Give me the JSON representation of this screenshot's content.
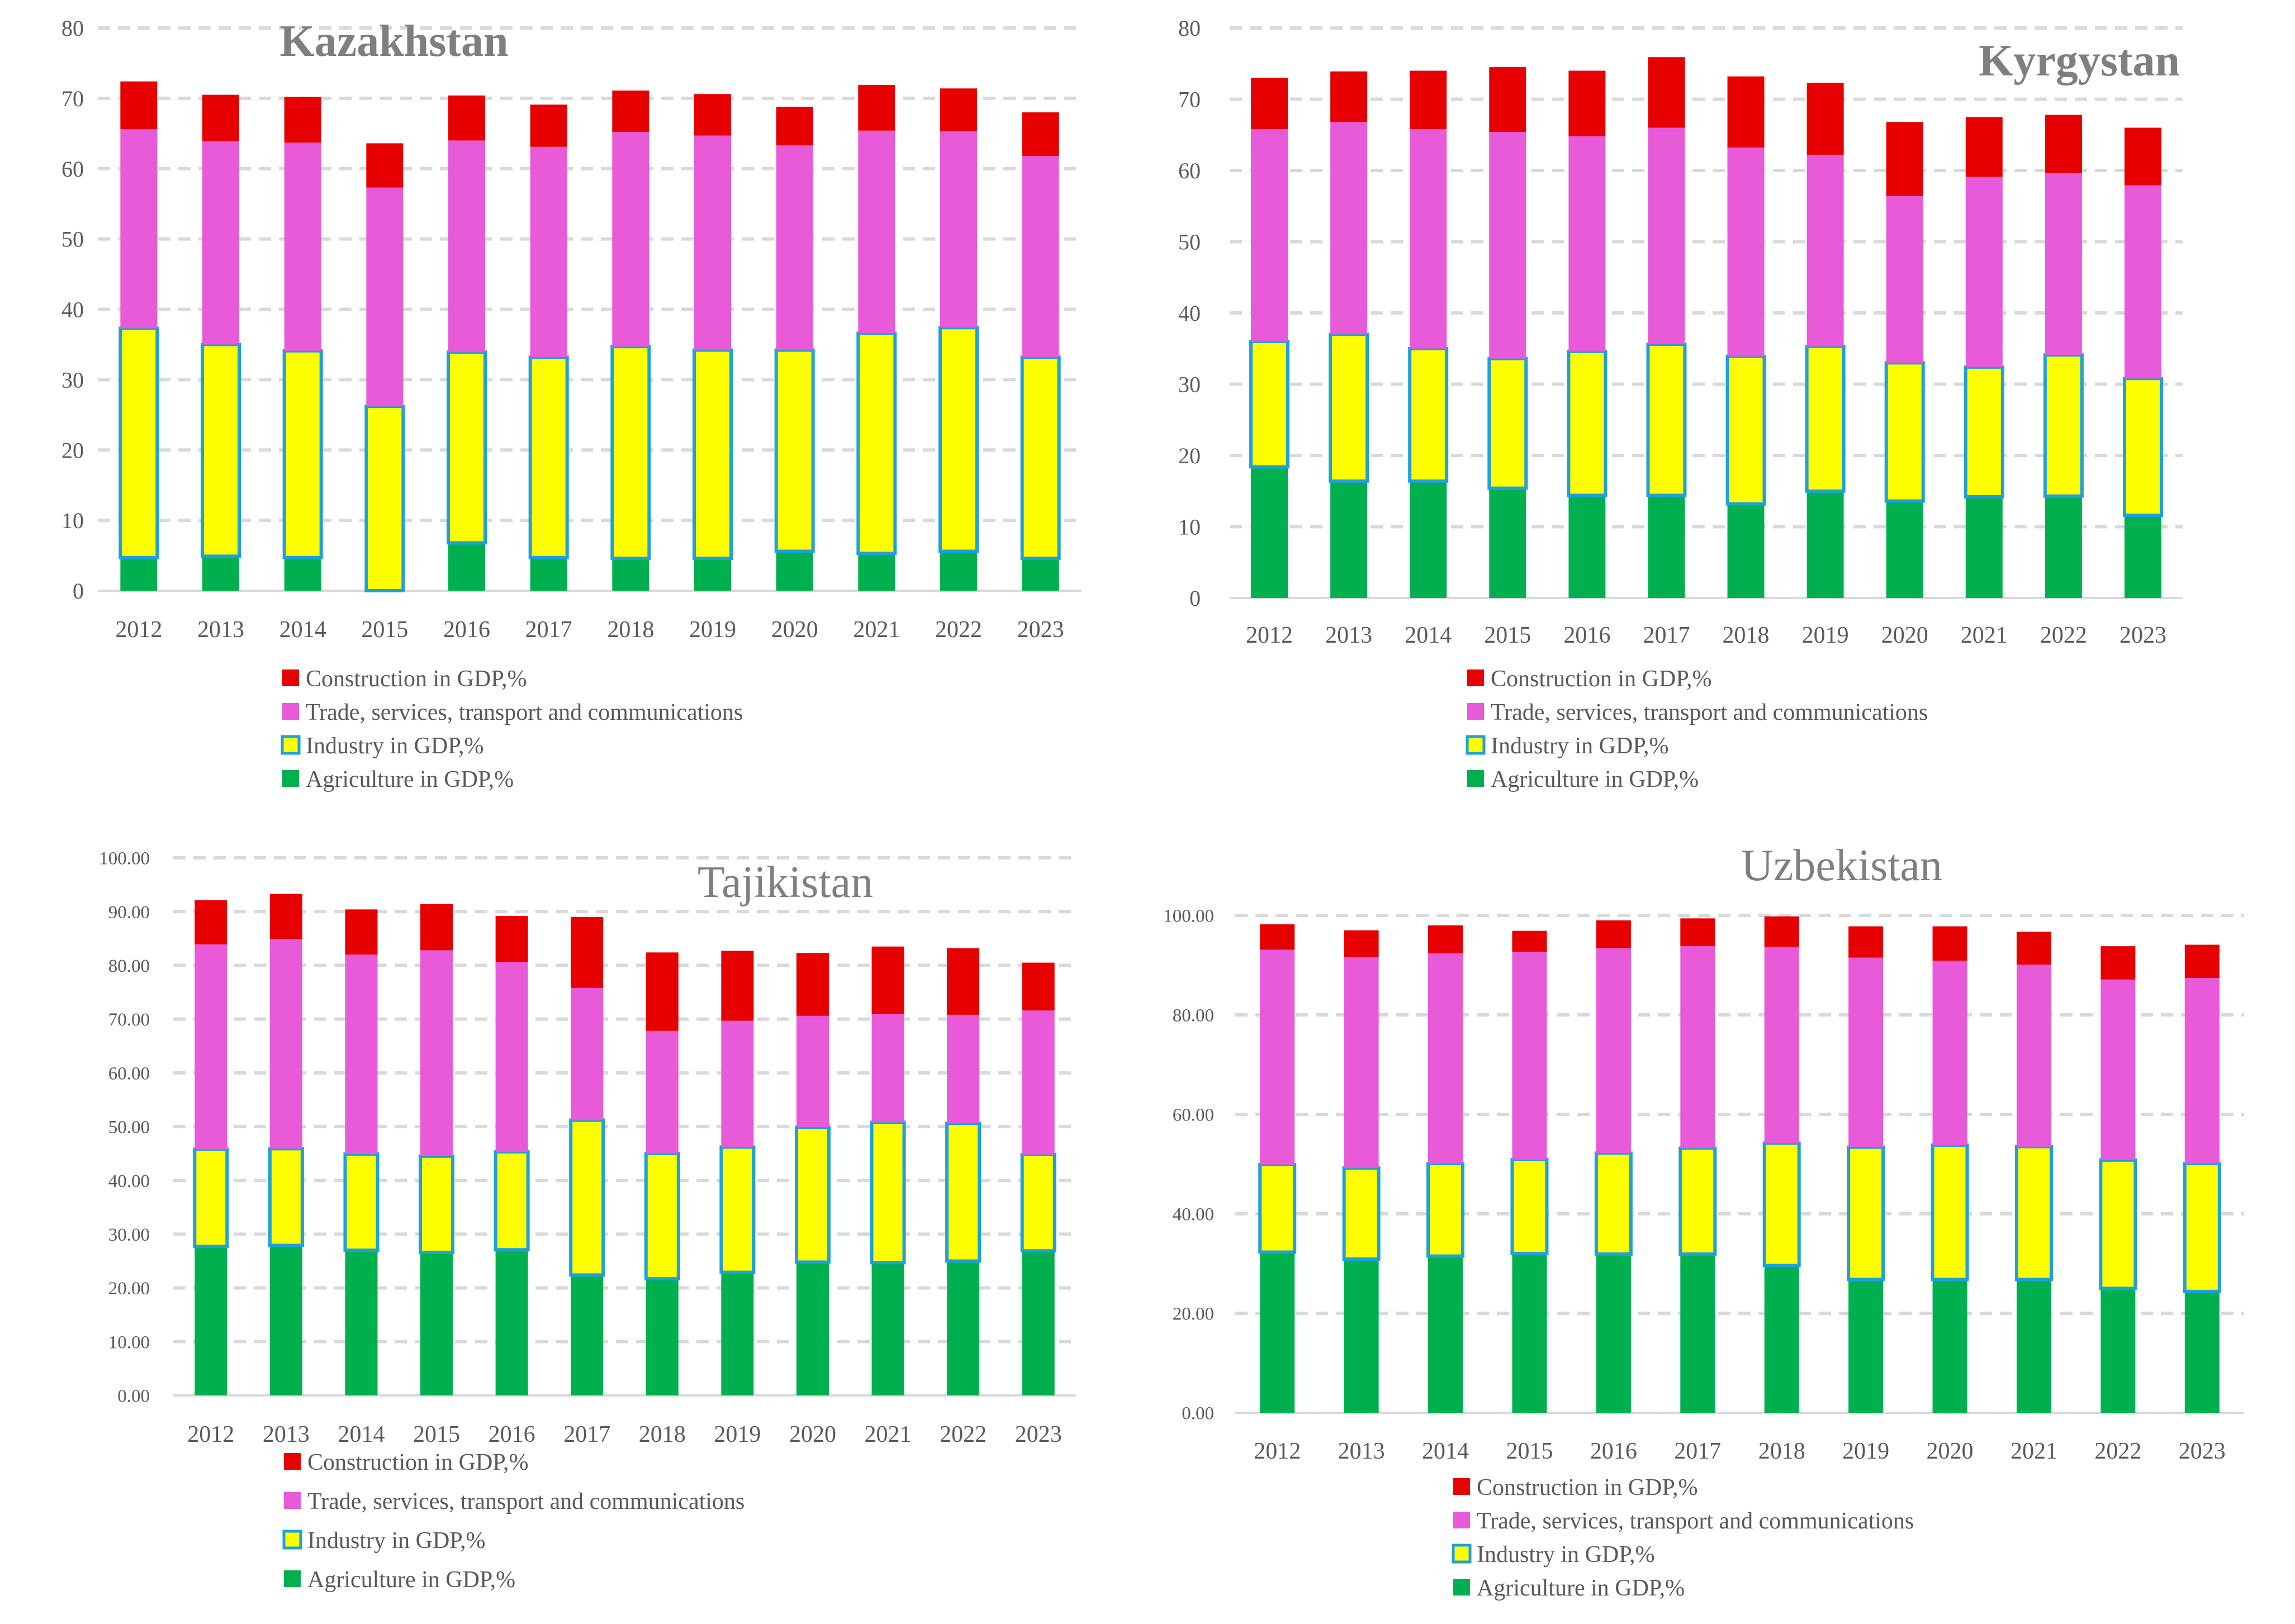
{
  "series_labels": [
    "Agriculture in GDP,%",
    "Industry in GDP,%",
    "Trade, services, transport and communications",
    "Construction in GDP,%"
  ],
  "colors": {
    "agriculture": "#00b04f",
    "industry": "#ffff00",
    "industry_border": "#1ea0dc",
    "trade": "#e95ad9",
    "construction": "#e60000",
    "grid": "#d9d9d9",
    "axis_text": "#595959",
    "title_text": "#7f7f7f"
  },
  "chart_data": [
    {
      "type": "bar",
      "title": "Kazakhstan",
      "categories": [
        "2012",
        "2013",
        "2014",
        "2015",
        "2016",
        "2017",
        "2018",
        "2019",
        "2020",
        "2021",
        "2022",
        "2023"
      ],
      "ylim": [
        0,
        80
      ],
      "yticks": [
        "0",
        "10",
        "20",
        "30",
        "40",
        "50",
        "60",
        "70",
        "80"
      ],
      "series": [
        {
          "name": "Agriculture in GDP,%",
          "values": [
            4.7,
            4.9,
            4.7,
            0,
            6.8,
            4.7,
            4.6,
            4.6,
            5.6,
            5.3,
            5.6,
            4.6
          ]
        },
        {
          "name": "Industry in GDP,%",
          "values": [
            32.6,
            30.1,
            29.4,
            26.2,
            27.1,
            28.5,
            30.1,
            29.6,
            28.6,
            31.3,
            31.8,
            28.6
          ]
        },
        {
          "name": "Trade, services, transport and communications",
          "values": [
            28.3,
            28.9,
            29.6,
            31.1,
            30.1,
            29.9,
            30.5,
            30.5,
            29.1,
            28.8,
            27.9,
            28.6
          ]
        },
        {
          "name": "Construction in GDP,%",
          "values": [
            6.8,
            6.6,
            6.5,
            6.3,
            6.4,
            6.0,
            5.9,
            5.9,
            5.5,
            6.5,
            6.1,
            6.2
          ]
        }
      ]
    },
    {
      "type": "bar",
      "title": "Kyrgystan",
      "categories": [
        "2012",
        "2013",
        "2014",
        "2015",
        "2016",
        "2017",
        "2018",
        "2019",
        "2020",
        "2021",
        "2022",
        "2023"
      ],
      "ylim": [
        0,
        80
      ],
      "yticks": [
        "0",
        "10",
        "20",
        "30",
        "40",
        "50",
        "60",
        "70",
        "80"
      ],
      "series": [
        {
          "name": "Agriculture in GDP,%",
          "values": [
            18.4,
            16.4,
            16.4,
            15.4,
            14.4,
            14.4,
            13.2,
            15.0,
            13.6,
            14.2,
            14.3,
            11.6
          ]
        },
        {
          "name": "Industry in GDP,%",
          "values": [
            17.6,
            20.6,
            18.6,
            18.2,
            20.2,
            21.2,
            20.7,
            20.3,
            19.4,
            18.2,
            19.8,
            19.2
          ]
        },
        {
          "name": "Trade, services, transport and communications",
          "values": [
            29.8,
            29.8,
            30.8,
            31.8,
            30.2,
            30.4,
            29.3,
            26.9,
            23.4,
            26.7,
            25.5,
            27.1
          ]
        },
        {
          "name": "Construction in GDP,%",
          "values": [
            7.2,
            7.1,
            8.2,
            9.1,
            9.2,
            9.9,
            10.0,
            10.1,
            10.4,
            8.4,
            8.2,
            8.1
          ]
        }
      ]
    },
    {
      "type": "bar",
      "title": "Tajikistan",
      "categories": [
        "2012",
        "2013",
        "2014",
        "2015",
        "2016",
        "2017",
        "2018",
        "2019",
        "2020",
        "2021",
        "2022",
        "2023"
      ],
      "ylim": [
        0,
        100
      ],
      "yticks": [
        "0.00",
        "10.00",
        "20.00",
        "30.00",
        "40.00",
        "50.00",
        "60.00",
        "70.00",
        "80.00",
        "90.00",
        "100.00"
      ],
      "series": [
        {
          "name": "Agriculture in GDP,%",
          "values": [
            27.7,
            27.9,
            27.0,
            26.6,
            27.1,
            22.4,
            21.7,
            22.9,
            24.8,
            24.7,
            25.0,
            26.9
          ]
        },
        {
          "name": "Industry in GDP,%",
          "values": [
            18.1,
            18.0,
            17.9,
            17.9,
            18.2,
            28.8,
            23.3,
            23.3,
            25.1,
            26.1,
            25.6,
            17.9
          ]
        },
        {
          "name": "Trade, services, transport and communications",
          "values": [
            38.1,
            39.0,
            37.1,
            38.3,
            35.3,
            24.6,
            22.8,
            23.5,
            20.7,
            20.2,
            20.2,
            26.8
          ]
        },
        {
          "name": "Construction in GDP,%",
          "values": [
            8.2,
            8.4,
            8.4,
            8.6,
            8.6,
            13.2,
            14.6,
            13.0,
            11.7,
            12.5,
            12.4,
            8.9
          ]
        }
      ]
    },
    {
      "type": "bar",
      "title": "Uzbekistan",
      "categories": [
        "2012",
        "2013",
        "2014",
        "2015",
        "2016",
        "2017",
        "2018",
        "2019",
        "2020",
        "2021",
        "2022",
        "2023"
      ],
      "ylim": [
        0,
        100
      ],
      "yticks": [
        "0.00",
        "20.00",
        "40.00",
        "60.00",
        "80.00",
        "100.00"
      ],
      "series": [
        {
          "name": "Agriculture in GDP,%",
          "values": [
            32.3,
            30.9,
            31.5,
            32.0,
            31.9,
            31.9,
            29.6,
            26.8,
            26.8,
            26.8,
            25.0,
            24.4
          ]
        },
        {
          "name": "Industry in GDP,%",
          "values": [
            17.6,
            18.3,
            18.6,
            18.9,
            20.3,
            21.3,
            24.6,
            26.6,
            27.0,
            26.7,
            25.8,
            25.7
          ]
        },
        {
          "name": "Trade, services, transport and communications",
          "values": [
            43.2,
            42.4,
            42.3,
            41.8,
            41.2,
            40.6,
            39.5,
            38.1,
            37.1,
            36.6,
            36.3,
            37.3
          ]
        },
        {
          "name": "Construction in GDP,%",
          "values": [
            5.1,
            5.4,
            5.6,
            4.2,
            5.6,
            5.6,
            6.1,
            6.3,
            6.9,
            6.6,
            6.7,
            6.7
          ]
        }
      ]
    }
  ]
}
